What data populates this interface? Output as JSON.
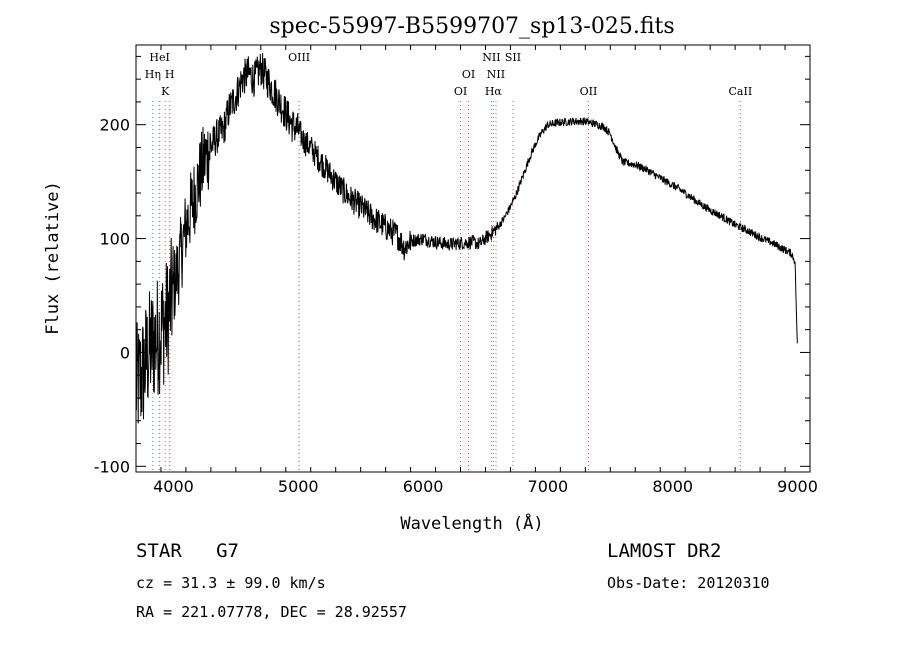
{
  "chart_data": {
    "type": "line",
    "title": "spec-55997-B5599707_sp13-025.fits",
    "xlabel": "Wavelength (Å)",
    "ylabel": "Flux (relative)",
    "xlim": [
      3700,
      9100
    ],
    "ylim": [
      -105,
      270
    ],
    "x_ticks": [
      4000,
      5000,
      6000,
      7000,
      8000,
      9000
    ],
    "y_ticks": [
      -100,
      0,
      100,
      200
    ],
    "grid": false,
    "legend": "none",
    "line_color": "#000000",
    "marker_color": "#e05050",
    "spectrum_profile": {
      "x": [
        3700,
        3750,
        3800,
        3850,
        3900,
        3950,
        4000,
        4050,
        4100,
        4150,
        4200,
        4250,
        4300,
        4350,
        4400,
        4450,
        4500,
        4550,
        4600,
        4650,
        4700,
        4750,
        4800,
        4850,
        4900,
        4950,
        5000,
        5050,
        5100,
        5150,
        5200,
        5300,
        5400,
        5500,
        5600,
        5700,
        5800,
        5850,
        5900,
        6000,
        6100,
        6200,
        6300,
        6400,
        6450,
        6500,
        6550,
        6600,
        6650,
        6700,
        6750,
        6800,
        6850,
        6900,
        6950,
        7000,
        7100,
        7200,
        7300,
        7400,
        7450,
        7500,
        7550,
        7600,
        7700,
        7800,
        7900,
        8000,
        8100,
        8200,
        8300,
        8400,
        8500,
        8600,
        8700,
        8800,
        8850,
        8900,
        8950,
        8980,
        9000
      ],
      "y": [
        -30,
        -20,
        0,
        10,
        20,
        30,
        55,
        80,
        110,
        130,
        150,
        170,
        180,
        190,
        195,
        215,
        225,
        240,
        245,
        240,
        250,
        240,
        230,
        220,
        210,
        200,
        195,
        185,
        180,
        172,
        165,
        150,
        137,
        128,
        118,
        110,
        102,
        92,
        98,
        100,
        97,
        95,
        96,
        97,
        95,
        100,
        105,
        110,
        118,
        128,
        140,
        155,
        170,
        183,
        193,
        200,
        202,
        203,
        203,
        200,
        198,
        192,
        178,
        167,
        165,
        160,
        153,
        147,
        140,
        132,
        125,
        119,
        112,
        107,
        101,
        96,
        93,
        90,
        87,
        80,
        0
      ]
    },
    "lines": [
      {
        "name": "HeI",
        "wavelength": 3889,
        "row": 1
      },
      {
        "name": "Hη",
        "wavelength": 3835,
        "row": 2
      },
      {
        "name": "H",
        "wavelength": 3970,
        "row": 2
      },
      {
        "name": "K",
        "wavelength": 3934,
        "row": 3
      },
      {
        "name": "OIII",
        "wavelength": 5007,
        "row": 1
      },
      {
        "name": "OI",
        "wavelength": 6300,
        "row": 3
      },
      {
        "name": "OI",
        "wavelength": 6364,
        "row": 2
      },
      {
        "name": "NII",
        "wavelength": 6548,
        "row": 1
      },
      {
        "name": "NII",
        "wavelength": 6584,
        "row": 2
      },
      {
        "name": "Hα",
        "wavelength": 6563,
        "row": 3
      },
      {
        "name": "SII",
        "wavelength": 6720,
        "row": 1
      },
      {
        "name": "OII",
        "wavelength": 7325,
        "row": 3
      },
      {
        "name": "CaII",
        "wavelength": 8542,
        "row": 3
      }
    ]
  },
  "info": {
    "class_label": "STAR",
    "subclass": "G7",
    "survey": "LAMOST DR2",
    "cz": "cz = 31.3 ± 99.0 km/s",
    "obs_date": "Obs-Date: 20120310",
    "coords": "RA = 221.07778, DEC =  28.92557"
  }
}
